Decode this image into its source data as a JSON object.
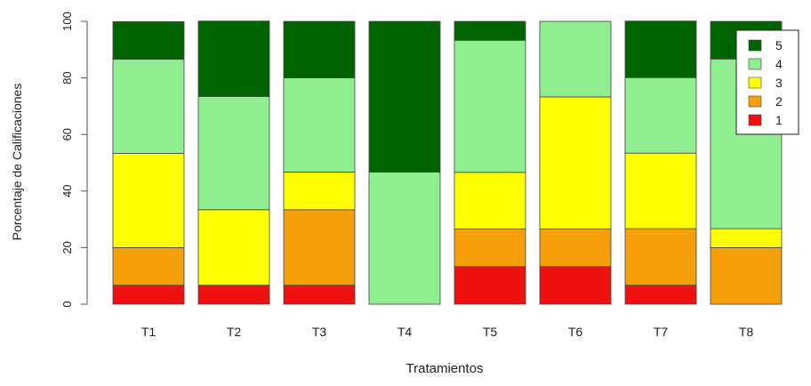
{
  "chart_data": {
    "type": "bar",
    "stacked": true,
    "xlabel": "Tratamientos",
    "ylabel": "Porcentaje de Calificaciones",
    "ylim": [
      0,
      100
    ],
    "yticks": [
      "0",
      "20",
      "40",
      "60",
      "80",
      "100"
    ],
    "categories": [
      "T1",
      "T2",
      "T3",
      "T4",
      "T5",
      "T6",
      "T7",
      "T8"
    ],
    "series": [
      {
        "name": "1",
        "color": "#ee1111",
        "values": [
          6.7,
          6.7,
          6.7,
          0,
          13.3,
          13.3,
          6.7,
          0
        ]
      },
      {
        "name": "2",
        "color": "#f5a00a",
        "values": [
          13.3,
          0,
          26.7,
          0,
          13.3,
          13.3,
          20,
          20
        ]
      },
      {
        "name": "3",
        "color": "#ffff00",
        "values": [
          33.3,
          26.7,
          13.3,
          0,
          20,
          46.7,
          26.7,
          6.7
        ]
      },
      {
        "name": "4",
        "color": "#90ee90",
        "values": [
          33.3,
          40,
          33.3,
          46.7,
          46.7,
          26.7,
          26.7,
          60
        ]
      },
      {
        "name": "5",
        "color": "#006400",
        "values": [
          13.3,
          26.7,
          20,
          53.3,
          6.7,
          0,
          20,
          13.3
        ]
      }
    ],
    "legend": {
      "position": "top-right",
      "order": [
        "5",
        "4",
        "3",
        "2",
        "1"
      ]
    }
  }
}
